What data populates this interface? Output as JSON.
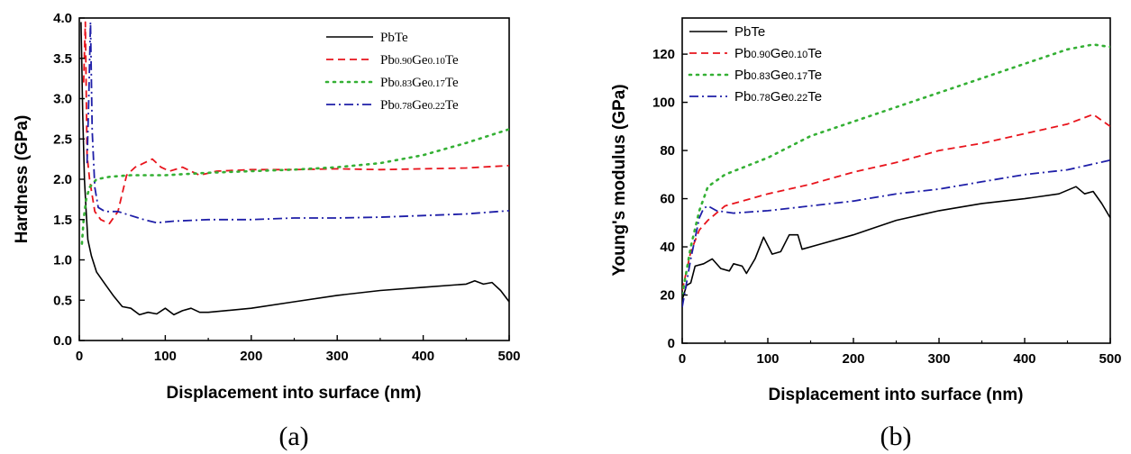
{
  "colors": {
    "PbTe": "#000000",
    "Ge010": "#e8141c",
    "Ge017": "#34b034",
    "Ge022": "#1f1fa8"
  },
  "chart_data": [
    {
      "type": "line",
      "caption": "(a)",
      "xlabel": "Displacement into surface (nm)",
      "ylabel": "Hardness (GPa)",
      "xlim": [
        0,
        500
      ],
      "ylim": [
        0,
        4.0
      ],
      "xticks": [
        "0",
        "100",
        "200",
        "300",
        "400",
        "500"
      ],
      "yticks": [
        "0.0",
        "0.5",
        "1.0",
        "1.5",
        "2.0",
        "2.5",
        "3.0",
        "3.5",
        "4.0"
      ],
      "legend_position": "top-right",
      "series": [
        {
          "name": "PbTe",
          "color_key": "PbTe",
          "dash": "",
          "width": 1.6,
          "label_parts": [
            [
              "PbTe",
              false
            ]
          ],
          "points": [
            [
              2,
              3.95
            ],
            [
              4,
              2.8
            ],
            [
              6,
              2.0
            ],
            [
              8,
              1.6
            ],
            [
              10,
              1.25
            ],
            [
              14,
              1.05
            ],
            [
              20,
              0.85
            ],
            [
              30,
              0.7
            ],
            [
              40,
              0.55
            ],
            [
              50,
              0.42
            ],
            [
              60,
              0.4
            ],
            [
              70,
              0.32
            ],
            [
              80,
              0.35
            ],
            [
              90,
              0.33
            ],
            [
              100,
              0.4
            ],
            [
              110,
              0.32
            ],
            [
              120,
              0.37
            ],
            [
              130,
              0.4
            ],
            [
              140,
              0.35
            ],
            [
              150,
              0.35
            ],
            [
              200,
              0.4
            ],
            [
              250,
              0.48
            ],
            [
              300,
              0.56
            ],
            [
              350,
              0.62
            ],
            [
              400,
              0.66
            ],
            [
              450,
              0.7
            ],
            [
              460,
              0.74
            ],
            [
              470,
              0.7
            ],
            [
              480,
              0.72
            ],
            [
              490,
              0.62
            ],
            [
              500,
              0.48
            ]
          ]
        },
        {
          "name": "Pb0.90Ge0.10Te",
          "color_key": "Ge010",
          "dash": "8 5",
          "width": 1.8,
          "label_parts": [
            [
              "Pb",
              false
            ],
            [
              "0.90",
              true
            ],
            [
              "Ge",
              false
            ],
            [
              "0.10",
              true
            ],
            [
              "Te",
              false
            ]
          ],
          "points": [
            [
              5,
              3.2
            ],
            [
              7,
              3.95
            ],
            [
              9,
              2.3
            ],
            [
              12,
              2.0
            ],
            [
              18,
              1.6
            ],
            [
              25,
              1.5
            ],
            [
              35,
              1.45
            ],
            [
              45,
              1.6
            ],
            [
              55,
              2.05
            ],
            [
              65,
              2.15
            ],
            [
              75,
              2.2
            ],
            [
              85,
              2.25
            ],
            [
              95,
              2.15
            ],
            [
              105,
              2.1
            ],
            [
              120,
              2.15
            ],
            [
              140,
              2.05
            ],
            [
              160,
              2.1
            ],
            [
              200,
              2.12
            ],
            [
              250,
              2.12
            ],
            [
              300,
              2.13
            ],
            [
              350,
              2.12
            ],
            [
              400,
              2.13
            ],
            [
              450,
              2.14
            ],
            [
              500,
              2.17
            ]
          ]
        },
        {
          "name": "Pb0.83Ge0.17Te",
          "color_key": "Ge017",
          "dash": "2 6",
          "width": 2.6,
          "label_parts": [
            [
              "Pb",
              false
            ],
            [
              "0.83",
              true
            ],
            [
              "Ge",
              false
            ],
            [
              "0.17",
              true
            ],
            [
              "Te",
              false
            ]
          ],
          "points": [
            [
              3,
              1.2
            ],
            [
              5,
              1.5
            ],
            [
              8,
              1.75
            ],
            [
              12,
              1.9
            ],
            [
              20,
              2.0
            ],
            [
              35,
              2.03
            ],
            [
              60,
              2.05
            ],
            [
              100,
              2.05
            ],
            [
              150,
              2.08
            ],
            [
              200,
              2.1
            ],
            [
              250,
              2.12
            ],
            [
              300,
              2.15
            ],
            [
              350,
              2.2
            ],
            [
              400,
              2.3
            ],
            [
              450,
              2.45
            ],
            [
              500,
              2.62
            ]
          ]
        },
        {
          "name": "Pb0.78Ge0.22Te",
          "color_key": "Ge022",
          "dash": "10 4 2 4",
          "width": 1.8,
          "label_parts": [
            [
              "Pb",
              false
            ],
            [
              "0.78",
              true
            ],
            [
              "Ge",
              false
            ],
            [
              "0.22",
              true
            ],
            [
              "Te",
              false
            ]
          ],
          "points": [
            [
              9,
              2.2
            ],
            [
              11,
              3.0
            ],
            [
              13,
              3.95
            ],
            [
              15,
              2.6
            ],
            [
              18,
              1.9
            ],
            [
              22,
              1.65
            ],
            [
              30,
              1.6
            ],
            [
              45,
              1.6
            ],
            [
              60,
              1.55
            ],
            [
              75,
              1.5
            ],
            [
              90,
              1.46
            ],
            [
              110,
              1.48
            ],
            [
              150,
              1.5
            ],
            [
              200,
              1.5
            ],
            [
              250,
              1.52
            ],
            [
              300,
              1.52
            ],
            [
              350,
              1.53
            ],
            [
              400,
              1.55
            ],
            [
              450,
              1.57
            ],
            [
              500,
              1.61
            ]
          ]
        }
      ]
    },
    {
      "type": "line",
      "caption": "(b)",
      "xlabel": "Displacement into surface (nm)",
      "ylabel": "Young's modulus (GPa)",
      "xlim": [
        0,
        500
      ],
      "ylim": [
        0,
        135
      ],
      "xticks": [
        "0",
        "100",
        "200",
        "300",
        "400",
        "500"
      ],
      "yticks": [
        "0",
        "20",
        "40",
        "60",
        "80",
        "100",
        "120"
      ],
      "legend_position": "top-left",
      "series": [
        {
          "name": "PbTe",
          "color_key": "PbTe",
          "dash": "",
          "width": 1.6,
          "label_parts": [
            [
              "PbTe",
              false
            ]
          ],
          "points": [
            [
              0,
              18
            ],
            [
              5,
              24
            ],
            [
              10,
              25
            ],
            [
              15,
              32
            ],
            [
              25,
              33
            ],
            [
              35,
              35
            ],
            [
              45,
              31
            ],
            [
              55,
              30
            ],
            [
              60,
              33
            ],
            [
              70,
              32
            ],
            [
              75,
              29
            ],
            [
              85,
              35
            ],
            [
              95,
              44
            ],
            [
              105,
              37
            ],
            [
              115,
              38
            ],
            [
              125,
              45
            ],
            [
              135,
              45
            ],
            [
              140,
              39
            ],
            [
              160,
              41
            ],
            [
              200,
              45
            ],
            [
              250,
              51
            ],
            [
              300,
              55
            ],
            [
              350,
              58
            ],
            [
              400,
              60
            ],
            [
              440,
              62
            ],
            [
              460,
              65
            ],
            [
              470,
              62
            ],
            [
              480,
              63
            ],
            [
              490,
              58
            ],
            [
              500,
              52
            ]
          ]
        },
        {
          "name": "Pb0.90Ge0.10Te",
          "color_key": "Ge010",
          "dash": "8 5",
          "width": 1.8,
          "label_parts": [
            [
              "Pb",
              false
            ],
            [
              "0.90",
              true
            ],
            [
              "Ge",
              false
            ],
            [
              "0.10",
              true
            ],
            [
              "Te",
              false
            ]
          ],
          "points": [
            [
              0,
              22
            ],
            [
              5,
              30
            ],
            [
              10,
              38
            ],
            [
              20,
              47
            ],
            [
              30,
              51
            ],
            [
              50,
              57
            ],
            [
              100,
              62
            ],
            [
              150,
              66
            ],
            [
              200,
              71
            ],
            [
              250,
              75
            ],
            [
              300,
              80
            ],
            [
              350,
              83
            ],
            [
              400,
              87
            ],
            [
              450,
              91
            ],
            [
              480,
              95
            ],
            [
              500,
              90
            ]
          ]
        },
        {
          "name": "Pb0.83Ge0.17Te",
          "color_key": "Ge017",
          "dash": "2 6",
          "width": 2.6,
          "label_parts": [
            [
              "Pb",
              false
            ],
            [
              "0.83",
              true
            ],
            [
              "Ge",
              false
            ],
            [
              "0.17",
              true
            ],
            [
              "Te",
              false
            ]
          ],
          "points": [
            [
              0,
              20
            ],
            [
              5,
              30
            ],
            [
              10,
              40
            ],
            [
              20,
              55
            ],
            [
              30,
              65
            ],
            [
              50,
              70
            ],
            [
              100,
              77
            ],
            [
              150,
              86
            ],
            [
              200,
              92
            ],
            [
              250,
              98
            ],
            [
              300,
              104
            ],
            [
              350,
              110
            ],
            [
              400,
              116
            ],
            [
              450,
              122
            ],
            [
              480,
              124
            ],
            [
              500,
              123
            ]
          ]
        },
        {
          "name": "Pb0.78Ge0.22Te",
          "color_key": "Ge022",
          "dash": "10 4 2 4",
          "width": 1.8,
          "label_parts": [
            [
              "Pb",
              false
            ],
            [
              "0.78",
              true
            ],
            [
              "Ge",
              false
            ],
            [
              "0.22",
              true
            ],
            [
              "Te",
              false
            ]
          ],
          "points": [
            [
              0,
              15
            ],
            [
              5,
              25
            ],
            [
              10,
              35
            ],
            [
              20,
              52
            ],
            [
              25,
              56
            ],
            [
              30,
              57
            ],
            [
              40,
              55
            ],
            [
              60,
              54
            ],
            [
              100,
              55
            ],
            [
              150,
              57
            ],
            [
              200,
              59
            ],
            [
              250,
              62
            ],
            [
              300,
              64
            ],
            [
              350,
              67
            ],
            [
              400,
              70
            ],
            [
              450,
              72
            ],
            [
              500,
              76
            ]
          ]
        }
      ]
    }
  ]
}
